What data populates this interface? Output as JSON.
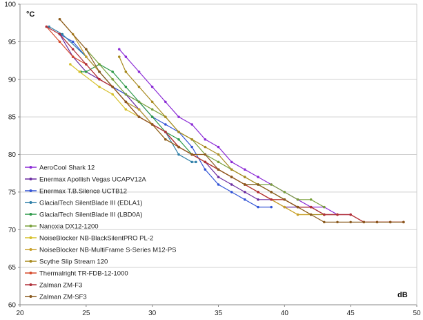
{
  "chart_data": {
    "type": "line",
    "ylabel": "°C",
    "xlabel": "dB",
    "xlim": [
      20,
      50
    ],
    "ylim": [
      60,
      100
    ],
    "xticks": [
      20,
      25,
      30,
      35,
      40,
      45,
      50
    ],
    "yticks": [
      60,
      65,
      70,
      75,
      80,
      85,
      90,
      95,
      100
    ],
    "grid": "horizontal",
    "legend_position": "left",
    "series": [
      {
        "name": "AeroCool Shark 12",
        "color": "#8b2bd6",
        "points": [
          [
            27.5,
            94
          ],
          [
            28,
            93
          ],
          [
            29,
            91
          ],
          [
            30,
            89
          ],
          [
            31,
            87
          ],
          [
            32,
            85
          ],
          [
            33,
            84
          ],
          [
            34,
            82
          ],
          [
            35,
            81
          ],
          [
            36,
            79
          ],
          [
            37,
            78
          ],
          [
            38,
            77
          ],
          [
            39,
            76
          ],
          [
            40,
            75
          ],
          [
            41,
            74
          ],
          [
            42,
            73
          ],
          [
            43,
            73
          ],
          [
            44,
            72
          ],
          [
            45,
            72
          ]
        ]
      },
      {
        "name": "Enermax Apollish Vegas UCAPV12A",
        "color": "#6a2ba0",
        "points": [
          [
            23,
            96
          ],
          [
            24,
            93
          ],
          [
            25,
            91
          ],
          [
            26,
            90
          ],
          [
            27,
            89
          ],
          [
            28,
            88
          ],
          [
            29,
            86
          ],
          [
            30,
            84
          ],
          [
            31,
            83
          ],
          [
            32,
            81
          ],
          [
            33,
            80
          ],
          [
            34,
            79
          ],
          [
            35,
            77
          ],
          [
            36,
            76
          ],
          [
            37,
            75
          ],
          [
            38,
            74
          ],
          [
            39,
            74
          ],
          [
            40,
            73
          ],
          [
            41,
            73
          ],
          [
            42,
            73
          ],
          [
            43,
            72
          ],
          [
            44,
            72
          ]
        ]
      },
      {
        "name": "Enermax T.B.Silence UCTB12",
        "color": "#3355d6",
        "points": [
          [
            23,
            96
          ],
          [
            24,
            95
          ],
          [
            25,
            93
          ],
          [
            26,
            91
          ],
          [
            27,
            89
          ],
          [
            28,
            88
          ],
          [
            29,
            87
          ],
          [
            30,
            85
          ],
          [
            31,
            84
          ],
          [
            32,
            83
          ],
          [
            33,
            81
          ],
          [
            34,
            78
          ],
          [
            35,
            76
          ],
          [
            36,
            75
          ],
          [
            37,
            74
          ],
          [
            38,
            73
          ],
          [
            39,
            73
          ]
        ]
      },
      {
        "name": "GlacialTech SilentBlade III (EDLA1)",
        "color": "#2e7fa8",
        "points": [
          [
            22.2,
            97
          ],
          [
            23.2,
            96
          ],
          [
            25,
            93
          ],
          [
            26,
            91
          ],
          [
            27,
            89
          ],
          [
            28,
            87
          ],
          [
            29,
            86
          ],
          [
            30,
            84
          ],
          [
            31,
            83
          ],
          [
            32,
            80
          ],
          [
            33,
            79
          ],
          [
            33.3,
            79
          ]
        ]
      },
      {
        "name": "GlacialTech SilentBlade III (LBD0A)",
        "color": "#2e9a4a",
        "points": [
          [
            24.6,
            91
          ],
          [
            25,
            91
          ],
          [
            26,
            92
          ],
          [
            27,
            91
          ],
          [
            28,
            89
          ],
          [
            29,
            87
          ],
          [
            30,
            85
          ],
          [
            31,
            83
          ],
          [
            32,
            82
          ],
          [
            33,
            80
          ],
          [
            34,
            79
          ],
          [
            35,
            78
          ],
          [
            36,
            77
          ],
          [
            37,
            76
          ],
          [
            38,
            76
          ],
          [
            39,
            75
          ],
          [
            40,
            74
          ],
          [
            41,
            73
          ],
          [
            42,
            73
          ],
          [
            43,
            72
          ]
        ]
      },
      {
        "name": "Nanoxia DX12-1200",
        "color": "#78a03a",
        "points": [
          [
            25,
            94
          ],
          [
            26,
            92
          ],
          [
            27,
            90
          ],
          [
            28,
            88
          ],
          [
            29,
            87
          ],
          [
            30,
            86
          ],
          [
            31,
            85
          ],
          [
            32,
            83
          ],
          [
            33,
            82
          ],
          [
            34,
            80
          ],
          [
            35,
            79
          ],
          [
            36,
            78
          ],
          [
            37,
            77
          ],
          [
            38,
            76
          ],
          [
            39,
            76
          ],
          [
            40,
            75
          ],
          [
            41,
            74
          ],
          [
            42,
            74
          ],
          [
            43,
            73
          ]
        ]
      },
      {
        "name": "NoiseBlocker NB-BlackSilentPRO PL-2",
        "color": "#d6c02b",
        "points": [
          [
            23.8,
            92
          ],
          [
            24.5,
            91
          ],
          [
            26,
            89
          ],
          [
            27,
            88
          ],
          [
            28,
            86
          ],
          [
            29,
            85
          ],
          [
            30,
            84
          ],
          [
            31,
            82
          ],
          [
            32,
            81
          ],
          [
            33,
            80
          ],
          [
            34,
            79
          ],
          [
            35,
            78
          ],
          [
            36,
            77
          ],
          [
            37,
            76
          ],
          [
            38,
            75
          ],
          [
            39,
            74
          ],
          [
            40,
            73
          ],
          [
            41,
            72
          ],
          [
            42,
            72
          ]
        ]
      },
      {
        "name": "NoiseBlocker NB-MultiFrame S-Series M12-PS",
        "color": "#c8a02b",
        "points": [
          [
            23,
            98
          ],
          [
            24,
            96
          ],
          [
            25,
            93
          ],
          [
            26,
            91
          ],
          [
            27,
            89
          ],
          [
            28,
            87
          ],
          [
            29,
            86
          ],
          [
            30,
            84
          ],
          [
            31,
            83
          ],
          [
            32,
            81
          ],
          [
            33,
            80
          ],
          [
            34,
            79
          ],
          [
            35,
            78
          ],
          [
            36,
            77
          ],
          [
            37,
            76
          ],
          [
            38,
            75
          ],
          [
            39,
            74
          ],
          [
            40,
            73
          ],
          [
            41,
            72
          ],
          [
            42,
            72
          ]
        ]
      },
      {
        "name": "Scythe Slip Stream 120",
        "color": "#a88a1f",
        "points": [
          [
            27.5,
            93
          ],
          [
            28,
            91
          ],
          [
            29,
            89
          ],
          [
            30,
            87
          ],
          [
            31,
            85
          ],
          [
            32,
            83
          ],
          [
            33,
            82
          ],
          [
            34,
            81
          ],
          [
            35,
            80
          ],
          [
            36,
            78
          ],
          [
            37,
            77
          ],
          [
            38,
            76
          ],
          [
            39,
            75
          ],
          [
            40,
            74
          ],
          [
            41,
            73
          ],
          [
            42,
            72
          ],
          [
            43,
            72
          ],
          [
            44,
            72
          ]
        ]
      },
      {
        "name": "Thermalright TR-FDB-12-1000",
        "color": "#d64a2b",
        "points": [
          [
            22,
            97
          ],
          [
            23,
            95
          ],
          [
            24,
            93
          ],
          [
            25,
            92
          ],
          [
            26,
            90
          ],
          [
            27,
            89
          ],
          [
            28,
            87
          ],
          [
            29,
            85
          ],
          [
            30,
            84
          ],
          [
            31,
            83
          ],
          [
            32,
            81
          ],
          [
            33,
            80
          ],
          [
            34,
            79
          ],
          [
            35,
            78
          ],
          [
            36,
            77
          ],
          [
            37,
            76
          ],
          [
            38,
            75
          ],
          [
            39,
            74
          ],
          [
            40,
            74
          ],
          [
            41,
            73
          ],
          [
            42,
            73
          ],
          [
            43,
            72
          ],
          [
            44,
            72
          ],
          [
            45,
            72
          ],
          [
            46,
            71
          ],
          [
            47,
            71
          ],
          [
            48,
            71
          ],
          [
            49,
            71
          ]
        ]
      },
      {
        "name": "Zalman ZM-F3",
        "color": "#b0303a",
        "points": [
          [
            22,
            97
          ],
          [
            23,
            96
          ],
          [
            24,
            94
          ],
          [
            25,
            92
          ],
          [
            26,
            90
          ],
          [
            27,
            89
          ],
          [
            28,
            87
          ],
          [
            29,
            85
          ],
          [
            30,
            84
          ],
          [
            31,
            83
          ],
          [
            32,
            81
          ],
          [
            33,
            80
          ],
          [
            34,
            79
          ],
          [
            35,
            78
          ],
          [
            36,
            77
          ],
          [
            37,
            76
          ],
          [
            38,
            75
          ],
          [
            39,
            74
          ],
          [
            40,
            74
          ],
          [
            41,
            73
          ],
          [
            42,
            73
          ],
          [
            43,
            72
          ],
          [
            44,
            72
          ],
          [
            45,
            72
          ],
          [
            46,
            71
          ],
          [
            47,
            71
          ],
          [
            48,
            71
          ],
          [
            49,
            71
          ]
        ]
      },
      {
        "name": "Zalman ZM-SF3",
        "color": "#8a5a1f",
        "points": [
          [
            23,
            98
          ],
          [
            25,
            94
          ],
          [
            26,
            91
          ],
          [
            27,
            89
          ],
          [
            28,
            87
          ],
          [
            29,
            85
          ],
          [
            30,
            84
          ],
          [
            31,
            82
          ],
          [
            32,
            81
          ],
          [
            33,
            80
          ],
          [
            34,
            80
          ],
          [
            35,
            78
          ],
          [
            36,
            77
          ],
          [
            37,
            76
          ],
          [
            38,
            76
          ],
          [
            39,
            75
          ],
          [
            40,
            74
          ],
          [
            41,
            73
          ],
          [
            42,
            72
          ],
          [
            43,
            71
          ],
          [
            44,
            71
          ],
          [
            45,
            71
          ],
          [
            46,
            71
          ],
          [
            47,
            71
          ],
          [
            48,
            71
          ],
          [
            49,
            71
          ]
        ]
      }
    ]
  }
}
